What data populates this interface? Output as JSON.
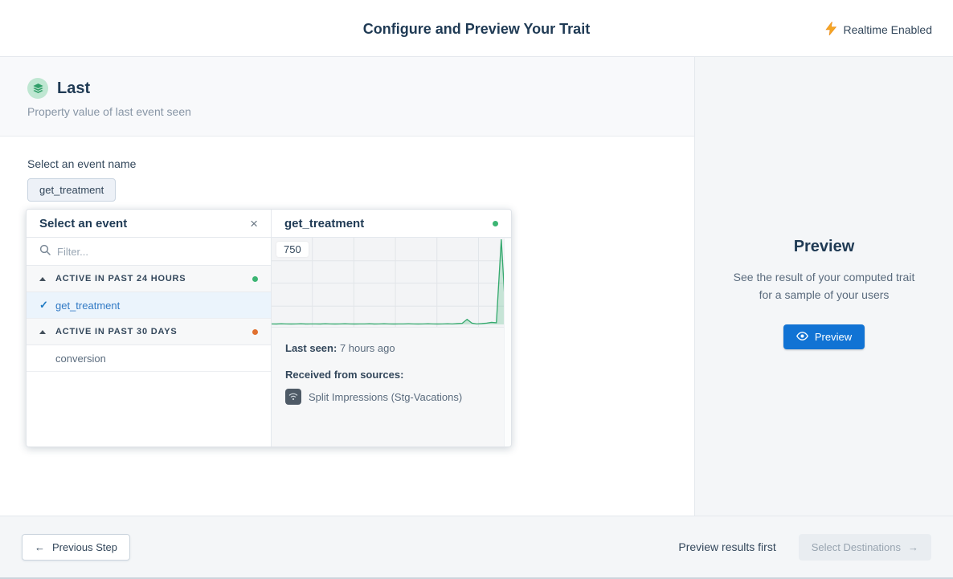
{
  "header": {
    "title": "Configure and Preview Your Trait",
    "realtime_label": "Realtime Enabled"
  },
  "trait": {
    "name": "Last",
    "description": "Property value of last event seen"
  },
  "event_select": {
    "label": "Select an event name",
    "selected_chip": "get_treatment"
  },
  "popover": {
    "title": "Select an event",
    "filter_placeholder": "Filter...",
    "groups": [
      {
        "label": "ACTIVE IN PAST 24 HOURS",
        "dot_color": "#3cb573",
        "items": [
          {
            "label": "get_treatment",
            "selected": true
          }
        ]
      },
      {
        "label": "ACTIVE IN PAST 30 DAYS",
        "dot_color": "#e0702f",
        "items": [
          {
            "label": "conversion",
            "selected": false
          }
        ]
      }
    ],
    "detail": {
      "title": "get_treatment",
      "status_dot_color": "#3cb573",
      "y_max_label": "750",
      "last_seen_label": "Last seen:",
      "last_seen_value": "7 hours ago",
      "sources_label": "Received from sources:",
      "source_name": "Split Impressions (Stg-Vacations)"
    }
  },
  "chart_data": {
    "type": "area",
    "title": "get_treatment event volume sparkline",
    "ylim": [
      0,
      750
    ],
    "y_tick_labels": [
      "750"
    ],
    "grid": true,
    "line_color": "#35a96e",
    "fill_color": "rgba(62,181,121,0.25)",
    "values": [
      5,
      4,
      6,
      5,
      4,
      5,
      6,
      4,
      5,
      5,
      4,
      6,
      5,
      4,
      5,
      6,
      5,
      4,
      5,
      5,
      6,
      4,
      5,
      6,
      5,
      4,
      5,
      5,
      6,
      5,
      4,
      5,
      6,
      5,
      4,
      5,
      6,
      5,
      8,
      10,
      45,
      12,
      5,
      8,
      12,
      18,
      15,
      750,
      10,
      4
    ]
  },
  "preview_panel": {
    "title": "Preview",
    "description_line1": "See the result of your computed trait",
    "description_line2": "for a sample of your users",
    "button_label": "Preview"
  },
  "footer": {
    "previous_label": "Previous Step",
    "hint": "Preview results first",
    "next_label": "Select Destinations"
  },
  "icons": {
    "close": "×",
    "check": "✓",
    "arrow_left": "←",
    "arrow_right": "→"
  },
  "colors": {
    "accent_blue": "#1173d4",
    "navy_text": "#1f3a54",
    "green_status": "#3cb573",
    "orange_status": "#e0702f",
    "bolt_yellow": "#f5a623",
    "chart_line": "#35a96e"
  }
}
